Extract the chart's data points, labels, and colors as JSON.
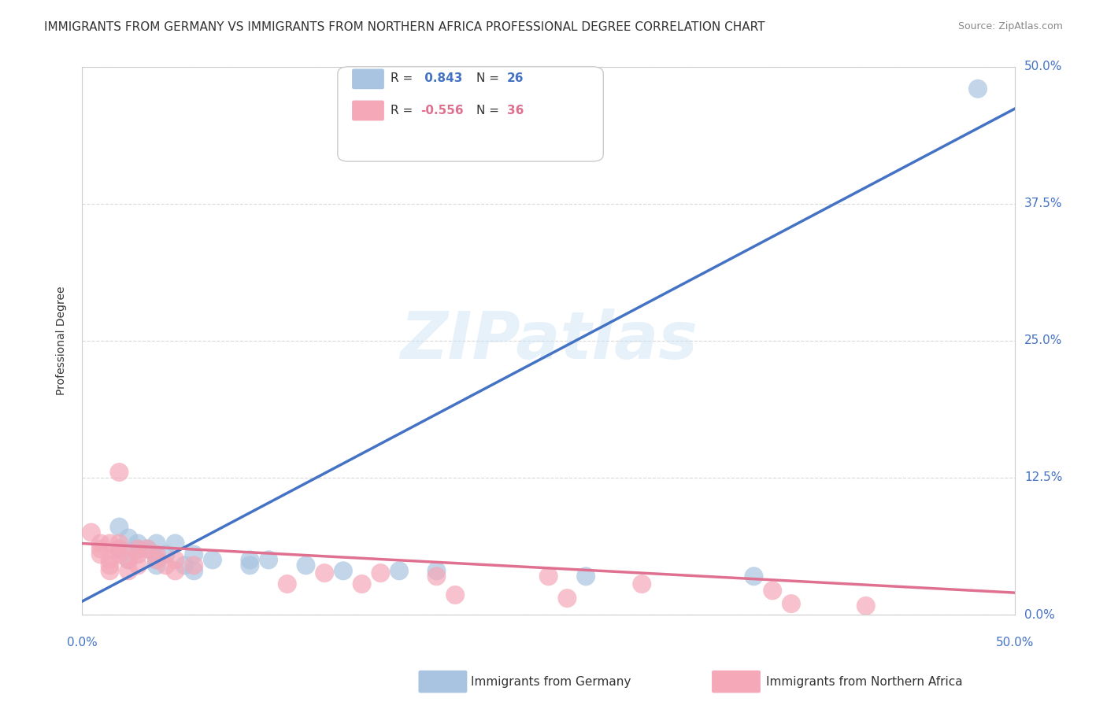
{
  "title": "IMMIGRANTS FROM GERMANY VS IMMIGRANTS FROM NORTHERN AFRICA PROFESSIONAL DEGREE CORRELATION CHART",
  "source": "Source: ZipAtlas.com",
  "ylabel": "Professional Degree",
  "xlim": [
    0.0,
    0.5
  ],
  "ylim": [
    0.0,
    0.5
  ],
  "xtick_labels": [
    "0.0%",
    "50.0%"
  ],
  "xtick_positions": [
    0.0,
    0.5
  ],
  "ytick_labels": [
    "0.0%",
    "12.5%",
    "25.0%",
    "37.5%",
    "50.0%"
  ],
  "ytick_positions": [
    0.0,
    0.125,
    0.25,
    0.375,
    0.5
  ],
  "watermark": "ZIPatlas",
  "blue_R": 0.843,
  "blue_N": 26,
  "pink_R": -0.556,
  "pink_N": 36,
  "blue_color": "#a8c4e0",
  "pink_color": "#f4a8b8",
  "blue_line_color": "#4472c4",
  "pink_line_color": "#e07090",
  "blue_scatter": [
    [
      0.02,
      0.08
    ],
    [
      0.025,
      0.07
    ],
    [
      0.03,
      0.065
    ],
    [
      0.04,
      0.065
    ],
    [
      0.05,
      0.065
    ],
    [
      0.02,
      0.06
    ],
    [
      0.03,
      0.06
    ],
    [
      0.035,
      0.06
    ],
    [
      0.045,
      0.055
    ],
    [
      0.06,
      0.055
    ],
    [
      0.025,
      0.05
    ],
    [
      0.04,
      0.05
    ],
    [
      0.07,
      0.05
    ],
    [
      0.09,
      0.05
    ],
    [
      0.1,
      0.05
    ],
    [
      0.04,
      0.045
    ],
    [
      0.055,
      0.045
    ],
    [
      0.09,
      0.045
    ],
    [
      0.12,
      0.045
    ],
    [
      0.06,
      0.04
    ],
    [
      0.14,
      0.04
    ],
    [
      0.17,
      0.04
    ],
    [
      0.19,
      0.04
    ],
    [
      0.27,
      0.035
    ],
    [
      0.36,
      0.035
    ],
    [
      0.48,
      0.48
    ]
  ],
  "pink_scatter": [
    [
      0.005,
      0.075
    ],
    [
      0.01,
      0.065
    ],
    [
      0.015,
      0.065
    ],
    [
      0.02,
      0.065
    ],
    [
      0.01,
      0.06
    ],
    [
      0.02,
      0.06
    ],
    [
      0.03,
      0.06
    ],
    [
      0.035,
      0.06
    ],
    [
      0.01,
      0.055
    ],
    [
      0.02,
      0.055
    ],
    [
      0.03,
      0.055
    ],
    [
      0.04,
      0.055
    ],
    [
      0.015,
      0.05
    ],
    [
      0.025,
      0.05
    ],
    [
      0.04,
      0.05
    ],
    [
      0.05,
      0.05
    ],
    [
      0.015,
      0.045
    ],
    [
      0.03,
      0.045
    ],
    [
      0.045,
      0.045
    ],
    [
      0.06,
      0.045
    ],
    [
      0.015,
      0.04
    ],
    [
      0.025,
      0.04
    ],
    [
      0.05,
      0.04
    ],
    [
      0.13,
      0.038
    ],
    [
      0.16,
      0.038
    ],
    [
      0.19,
      0.035
    ],
    [
      0.25,
      0.035
    ],
    [
      0.11,
      0.028
    ],
    [
      0.15,
      0.028
    ],
    [
      0.3,
      0.028
    ],
    [
      0.37,
      0.022
    ],
    [
      0.2,
      0.018
    ],
    [
      0.26,
      0.015
    ],
    [
      0.38,
      0.01
    ],
    [
      0.42,
      0.008
    ],
    [
      0.02,
      0.13
    ]
  ],
  "blue_line_x": [
    0.0,
    0.5
  ],
  "blue_line_slope": 0.9,
  "blue_line_intercept": 0.012,
  "pink_line_x": [
    0.0,
    0.5
  ],
  "pink_line_slope": -0.09,
  "pink_line_intercept": 0.065,
  "grid_color": "#d0d0d0",
  "background_color": "#ffffff",
  "title_fontsize": 11,
  "source_fontsize": 9,
  "axis_label_fontsize": 10,
  "tick_label_color_blue": "#4472c4",
  "legend_R_color_blue": "#4472c4",
  "legend_R_color_pink": "#e07090",
  "legend_N_color_blue": "#4472c4",
  "legend_N_color_pink": "#e07090"
}
